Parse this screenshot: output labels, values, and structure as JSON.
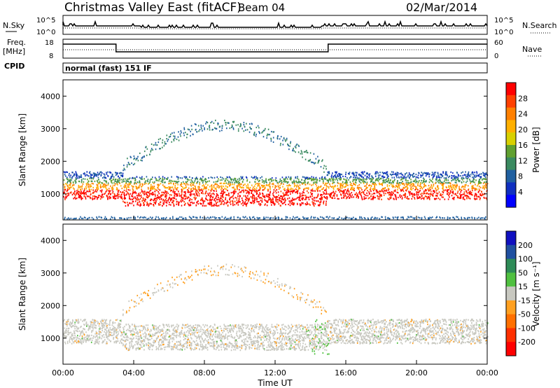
{
  "header": {
    "site": "Christmas Valley East (fitACF)",
    "beam": "Beam 04",
    "date": "02/Mar/2014"
  },
  "strip_panels": {
    "nsky_label": "N.Sky",
    "nsky_ticks": [
      "10^5",
      "10^0"
    ],
    "nsearch_label": "N.Search",
    "nsearch_ticks": [
      "10^5",
      "10^0"
    ],
    "freq_label_1": "Freq.",
    "freq_label_2": "[MHz]",
    "freq_ticks": [
      "18",
      "8"
    ],
    "nave_label": "Nave",
    "nave_ticks": [
      "60",
      "0"
    ],
    "cpid_label": "CPID",
    "cpid_text": "normal (fast) 151 IF"
  },
  "chart_data": [
    {
      "type": "heatmap",
      "name": "power-panel",
      "ylabel": "Slant Range [km]",
      "xlabel": "",
      "ylim": [
        200,
        4500
      ],
      "yticks": [
        "4000",
        "3000",
        "2000",
        "1000"
      ],
      "xlim": [
        "00:00",
        "24:00"
      ],
      "colorbar": {
        "label": "Power [dB]",
        "ticks": [
          "28",
          "24",
          "20",
          "16",
          "12",
          "8",
          "4"
        ],
        "colors": [
          "#ff0000",
          "#ff4000",
          "#ff8000",
          "#ffb000",
          "#d8d000",
          "#60a030",
          "#3a8a60",
          "#2060a0",
          "#1030c0",
          "#0000ff"
        ]
      },
      "features": [
        {
          "band": "ionospheric",
          "range_km": [
            900,
            1600
          ],
          "time_h": [
            0,
            24
          ],
          "power_db": 25
        },
        {
          "band": "arc",
          "range_km": [
            1600,
            3400
          ],
          "time_h": [
            3,
            14.5
          ],
          "power_db": 12
        }
      ]
    },
    {
      "type": "heatmap",
      "name": "velocity-panel",
      "ylabel": "Slant Range [km]",
      "xlabel": "Time UT",
      "ylim": [
        200,
        4500
      ],
      "yticks": [
        "4000",
        "3000",
        "2000",
        "1000"
      ],
      "xticks": [
        "00:00",
        "04:00",
        "08:00",
        "12:00",
        "16:00",
        "20:00",
        "00:00"
      ],
      "colorbar": {
        "label": "Velocity [m s⁻¹]",
        "ticks": [
          "200",
          "100",
          "50",
          "15",
          "-15",
          "-50",
          "-100",
          "-200"
        ],
        "colors": [
          "#1010c0",
          "#2050a0",
          "#2e8b57",
          "#50c040",
          "#c8c8c0",
          "#ffa020",
          "#ff7000",
          "#ff3000",
          "#ff0000"
        ]
      }
    }
  ],
  "colors": {
    "frame": "#000000",
    "background": "#ffffff"
  }
}
